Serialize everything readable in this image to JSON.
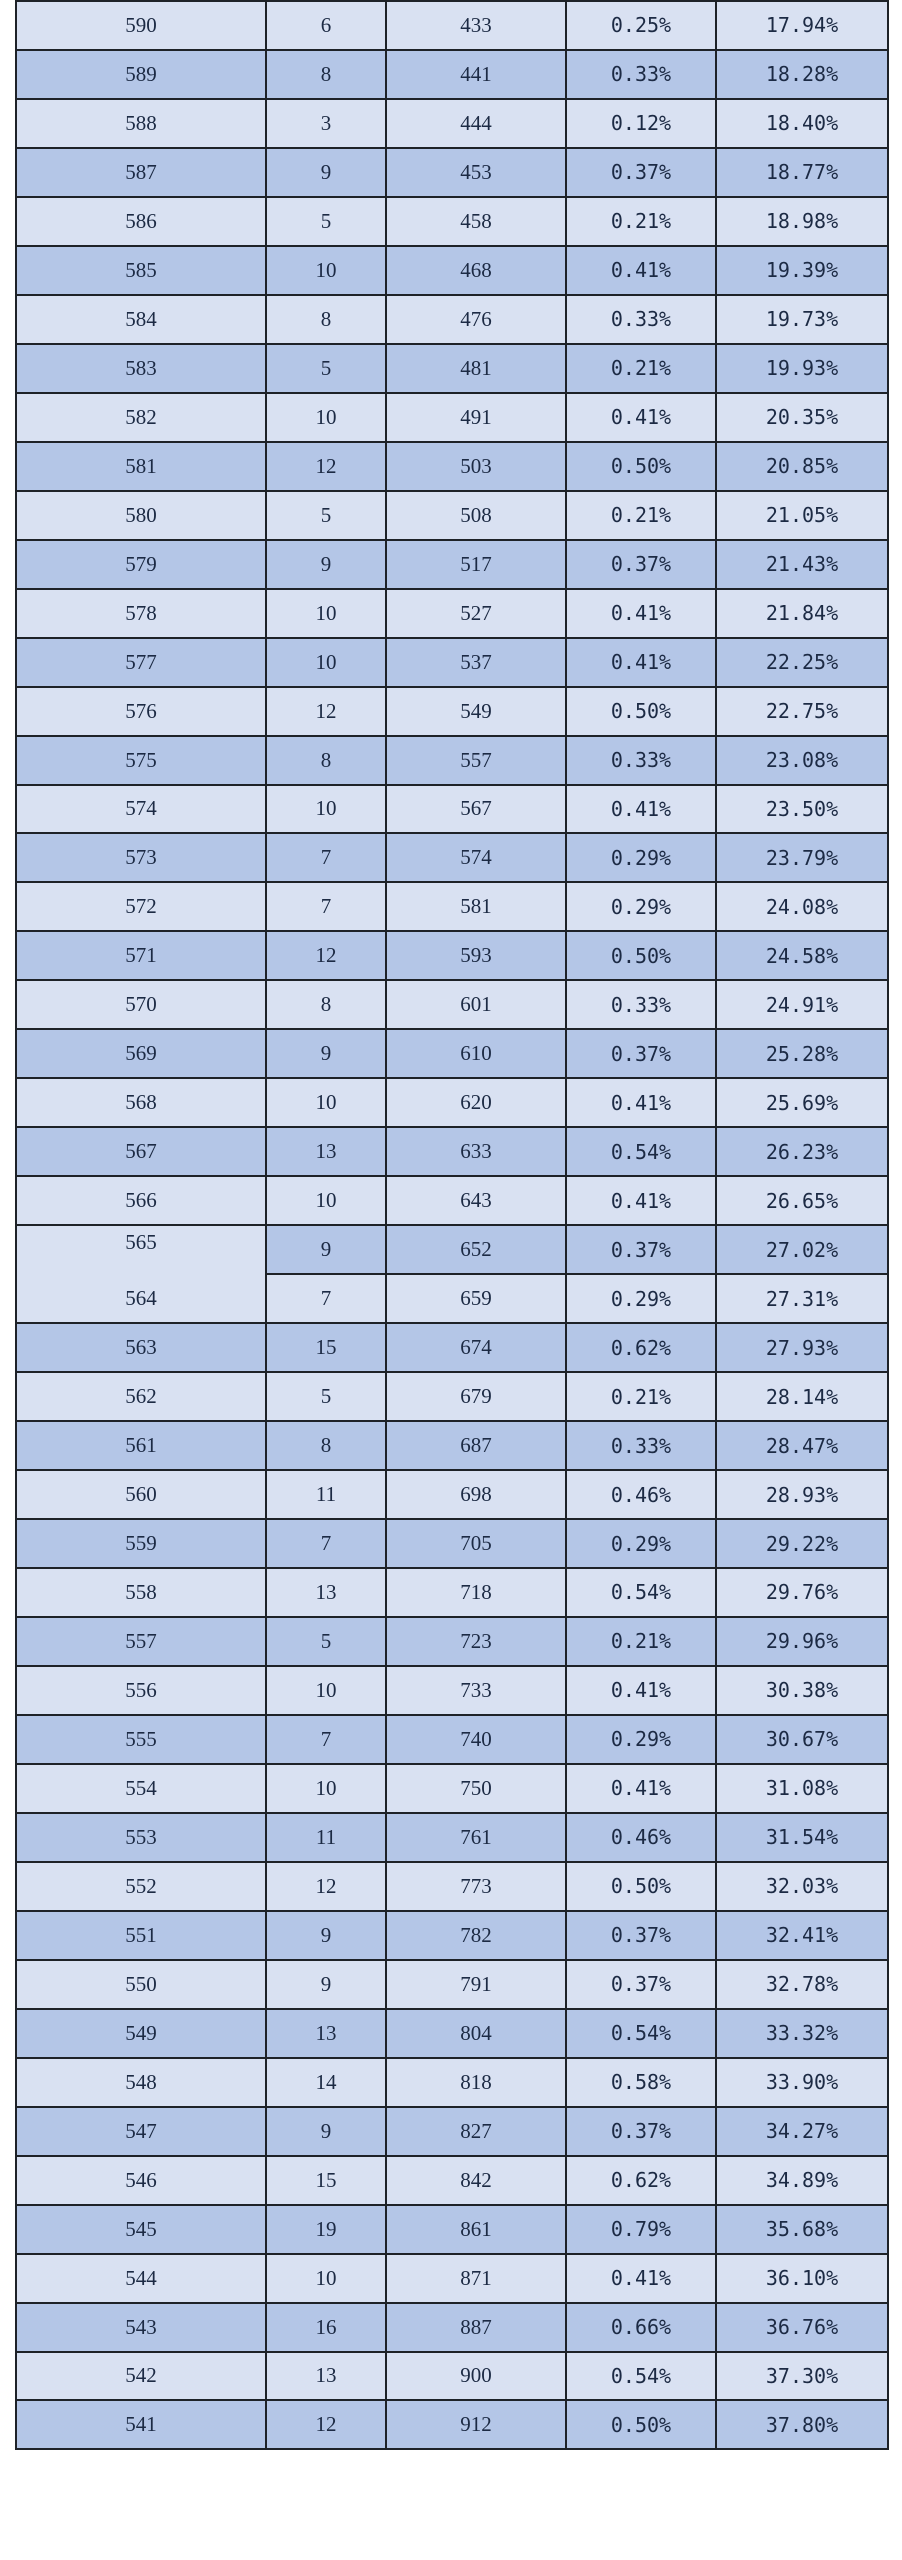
{
  "table": {
    "rows": [
      {
        "score": "590",
        "count": "6",
        "cumulative": "433",
        "percent": "0.25%",
        "cum_percent": "17.94%"
      },
      {
        "score": "589",
        "count": "8",
        "cumulative": "441",
        "percent": "0.33%",
        "cum_percent": "18.28%"
      },
      {
        "score": "588",
        "count": "3",
        "cumulative": "444",
        "percent": "0.12%",
        "cum_percent": "18.40%"
      },
      {
        "score": "587",
        "count": "9",
        "cumulative": "453",
        "percent": "0.37%",
        "cum_percent": "18.77%"
      },
      {
        "score": "586",
        "count": "5",
        "cumulative": "458",
        "percent": "0.21%",
        "cum_percent": "18.98%"
      },
      {
        "score": "585",
        "count": "10",
        "cumulative": "468",
        "percent": "0.41%",
        "cum_percent": "19.39%"
      },
      {
        "score": "584",
        "count": "8",
        "cumulative": "476",
        "percent": "0.33%",
        "cum_percent": "19.73%"
      },
      {
        "score": "583",
        "count": "5",
        "cumulative": "481",
        "percent": "0.21%",
        "cum_percent": "19.93%"
      },
      {
        "score": "582",
        "count": "10",
        "cumulative": "491",
        "percent": "0.41%",
        "cum_percent": "20.35%"
      },
      {
        "score": "581",
        "count": "12",
        "cumulative": "503",
        "percent": "0.50%",
        "cum_percent": "20.85%"
      },
      {
        "score": "580",
        "count": "5",
        "cumulative": "508",
        "percent": "0.21%",
        "cum_percent": "21.05%"
      },
      {
        "score": "579",
        "count": "9",
        "cumulative": "517",
        "percent": "0.37%",
        "cum_percent": "21.43%"
      },
      {
        "score": "578",
        "count": "10",
        "cumulative": "527",
        "percent": "0.41%",
        "cum_percent": "21.84%"
      },
      {
        "score": "577",
        "count": "10",
        "cumulative": "537",
        "percent": "0.41%",
        "cum_percent": "22.25%"
      },
      {
        "score": "576",
        "count": "12",
        "cumulative": "549",
        "percent": "0.50%",
        "cum_percent": "22.75%"
      },
      {
        "score": "575",
        "count": "8",
        "cumulative": "557",
        "percent": "0.33%",
        "cum_percent": "23.08%"
      },
      {
        "score": "574",
        "count": "10",
        "cumulative": "567",
        "percent": "0.41%",
        "cum_percent": "23.50%"
      },
      {
        "score": "573",
        "count": "7",
        "cumulative": "574",
        "percent": "0.29%",
        "cum_percent": "23.79%"
      },
      {
        "score": "572",
        "count": "7",
        "cumulative": "581",
        "percent": "0.29%",
        "cum_percent": "24.08%"
      },
      {
        "score": "571",
        "count": "12",
        "cumulative": "593",
        "percent": "0.50%",
        "cum_percent": "24.58%"
      },
      {
        "score": "570",
        "count": "8",
        "cumulative": "601",
        "percent": "0.33%",
        "cum_percent": "24.91%"
      },
      {
        "score": "569",
        "count": "9",
        "cumulative": "610",
        "percent": "0.37%",
        "cum_percent": "25.28%"
      },
      {
        "score": "568",
        "count": "10",
        "cumulative": "620",
        "percent": "0.41%",
        "cum_percent": "25.69%"
      },
      {
        "score": "567",
        "count": "13",
        "cumulative": "633",
        "percent": "0.54%",
        "cum_percent": "26.23%"
      },
      {
        "score": "566",
        "count": "10",
        "cumulative": "643",
        "percent": "0.41%",
        "cum_percent": "26.65%"
      },
      {
        "score": "565",
        "count": "9",
        "cumulative": "652",
        "percent": "0.37%",
        "cum_percent": "27.02%"
      },
      {
        "score": "564",
        "count": "7",
        "cumulative": "659",
        "percent": "0.29%",
        "cum_percent": "27.31%"
      },
      {
        "score": "563",
        "count": "15",
        "cumulative": "674",
        "percent": "0.62%",
        "cum_percent": "27.93%"
      },
      {
        "score": "562",
        "count": "5",
        "cumulative": "679",
        "percent": "0.21%",
        "cum_percent": "28.14%"
      },
      {
        "score": "561",
        "count": "8",
        "cumulative": "687",
        "percent": "0.33%",
        "cum_percent": "28.47%"
      },
      {
        "score": "560",
        "count": "11",
        "cumulative": "698",
        "percent": "0.46%",
        "cum_percent": "28.93%"
      },
      {
        "score": "559",
        "count": "7",
        "cumulative": "705",
        "percent": "0.29%",
        "cum_percent": "29.22%"
      },
      {
        "score": "558",
        "count": "13",
        "cumulative": "718",
        "percent": "0.54%",
        "cum_percent": "29.76%"
      },
      {
        "score": "557",
        "count": "5",
        "cumulative": "723",
        "percent": "0.21%",
        "cum_percent": "29.96%"
      },
      {
        "score": "556",
        "count": "10",
        "cumulative": "733",
        "percent": "0.41%",
        "cum_percent": "30.38%"
      },
      {
        "score": "555",
        "count": "7",
        "cumulative": "740",
        "percent": "0.29%",
        "cum_percent": "30.67%"
      },
      {
        "score": "554",
        "count": "10",
        "cumulative": "750",
        "percent": "0.41%",
        "cum_percent": "31.08%"
      },
      {
        "score": "553",
        "count": "11",
        "cumulative": "761",
        "percent": "0.46%",
        "cum_percent": "31.54%"
      },
      {
        "score": "552",
        "count": "12",
        "cumulative": "773",
        "percent": "0.50%",
        "cum_percent": "32.03%"
      },
      {
        "score": "551",
        "count": "9",
        "cumulative": "782",
        "percent": "0.37%",
        "cum_percent": "32.41%"
      },
      {
        "score": "550",
        "count": "9",
        "cumulative": "791",
        "percent": "0.37%",
        "cum_percent": "32.78%"
      },
      {
        "score": "549",
        "count": "13",
        "cumulative": "804",
        "percent": "0.54%",
        "cum_percent": "33.32%"
      },
      {
        "score": "548",
        "count": "14",
        "cumulative": "818",
        "percent": "0.58%",
        "cum_percent": "33.90%"
      },
      {
        "score": "547",
        "count": "9",
        "cumulative": "827",
        "percent": "0.37%",
        "cum_percent": "34.27%"
      },
      {
        "score": "546",
        "count": "15",
        "cumulative": "842",
        "percent": "0.62%",
        "cum_percent": "34.89%"
      },
      {
        "score": "545",
        "count": "19",
        "cumulative": "861",
        "percent": "0.79%",
        "cum_percent": "35.68%"
      },
      {
        "score": "544",
        "count": "10",
        "cumulative": "871",
        "percent": "0.41%",
        "cum_percent": "36.10%"
      },
      {
        "score": "543",
        "count": "16",
        "cumulative": "887",
        "percent": "0.66%",
        "cum_percent": "36.76%"
      },
      {
        "score": "542",
        "count": "13",
        "cumulative": "900",
        "percent": "0.54%",
        "cum_percent": "37.30%"
      },
      {
        "score": "541",
        "count": "12",
        "cumulative": "912",
        "percent": "0.50%",
        "cum_percent": "37.80%"
      }
    ]
  },
  "colors": {
    "row_light": "#d9e1f2",
    "row_dark": "#b4c6e7",
    "border": "#1e2228",
    "text": "#1c2a44"
  }
}
